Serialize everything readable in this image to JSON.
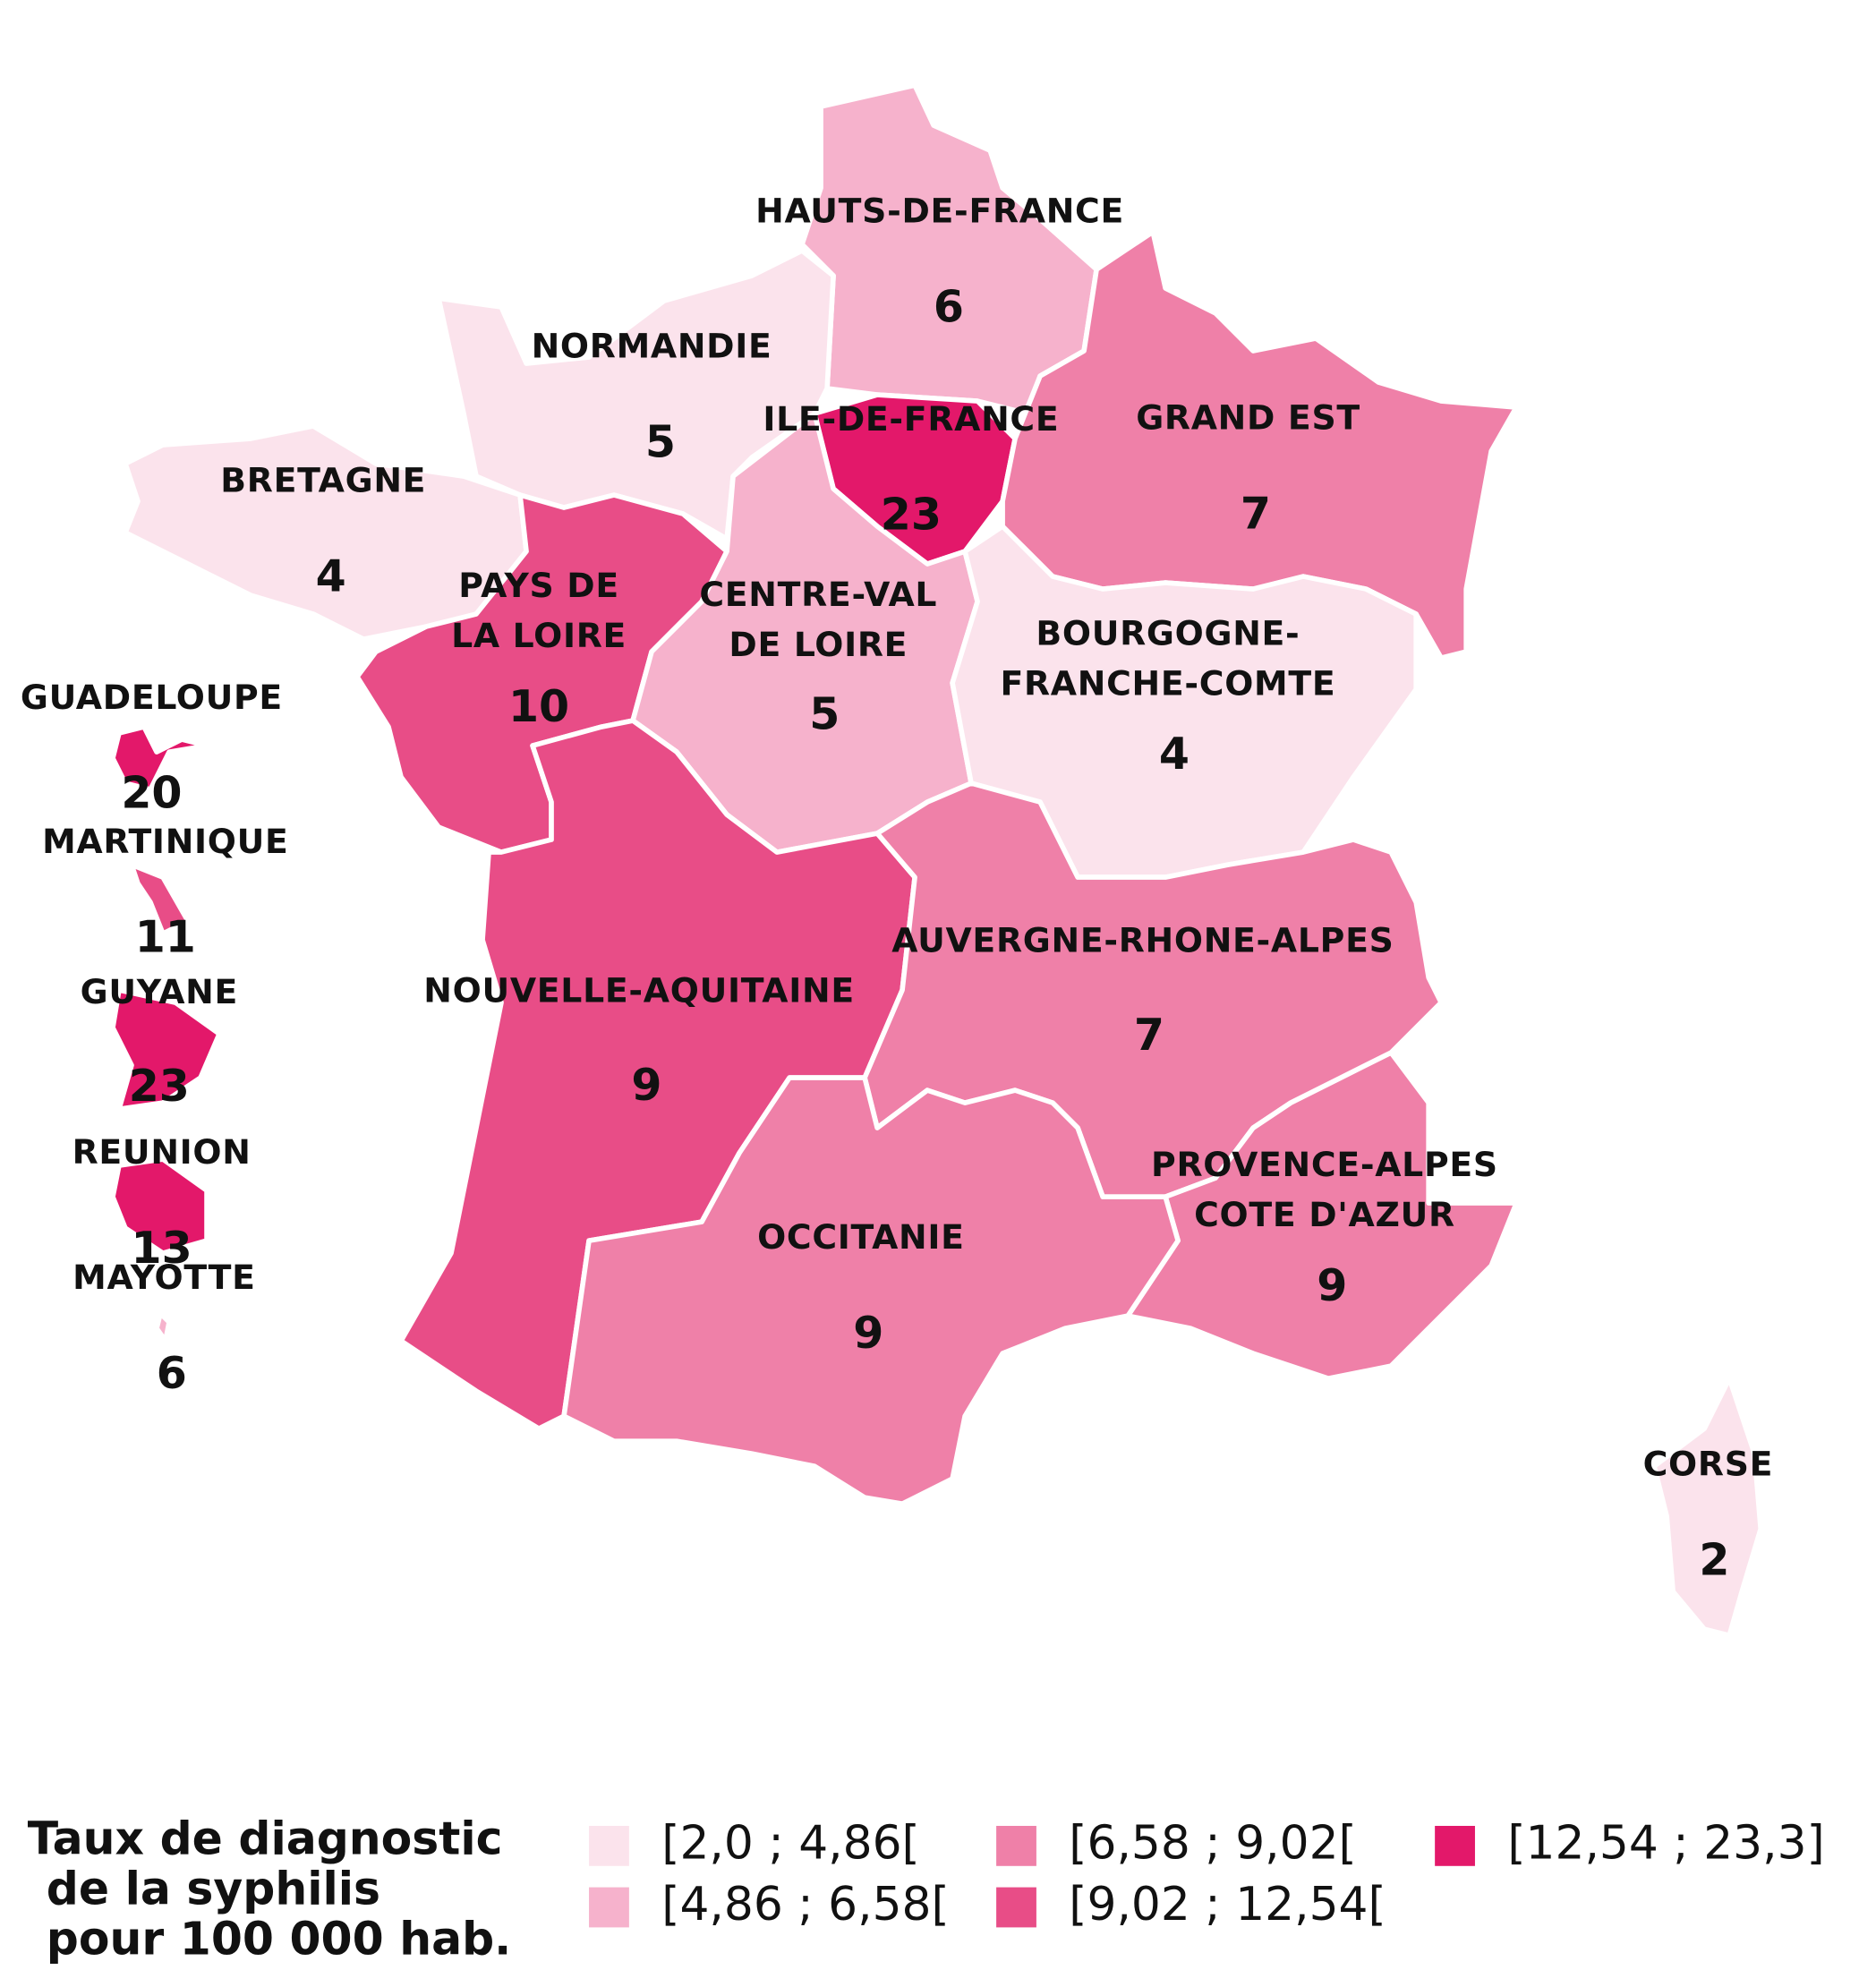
{
  "regions": [
    {
      "name": [
        "HAUTS-DE-FRANCE"
      ],
      "value": 6,
      "color": "#f6b2cc"
    },
    {
      "name": [
        "NORMANDIE"
      ],
      "value": 5,
      "color": "#fbe3ec"
    },
    {
      "name": [
        "ILE-DE-FRANCE"
      ],
      "value": 23,
      "color": "#e3186a"
    },
    {
      "name": [
        "GRAND EST"
      ],
      "value": 7,
      "color": "#ef80a8"
    },
    {
      "name": [
        "BRETAGNE"
      ],
      "value": 4,
      "color": "#fbe3ec"
    },
    {
      "name": [
        "PAYS DE",
        "LA LOIRE"
      ],
      "value": 10,
      "color": "#e84d87"
    },
    {
      "name": [
        "CENTRE-VAL",
        "DE LOIRE"
      ],
      "value": 5,
      "color": "#f6b2cc"
    },
    {
      "name": [
        "BOURGOGNE-",
        "FRANCHE-COMTE"
      ],
      "value": 4,
      "color": "#fbe3ec"
    },
    {
      "name": [
        "NOUVELLE-AQUITAINE"
      ],
      "value": 9,
      "color": "#e84d87"
    },
    {
      "name": [
        "AUVERGNE-RHONE-ALPES"
      ],
      "value": 7,
      "color": "#ef80a8"
    },
    {
      "name": [
        "PROVENCE-ALPES",
        "COTE D'AZUR"
      ],
      "value": 9,
      "color": "#ef80a8"
    },
    {
      "name": [
        "OCCITANIE"
      ],
      "value": 9,
      "color": "#ef80a8"
    },
    {
      "name": [
        "CORSE"
      ],
      "value": 2,
      "color": "#fbe3ec"
    },
    {
      "name": [
        "GUADELOUPE"
      ],
      "value": 20,
      "color": "#e3186a"
    },
    {
      "name": [
        "MARTINIQUE"
      ],
      "value": 11,
      "color": "#e84d87"
    },
    {
      "name": [
        "GUYANE"
      ],
      "value": 23,
      "color": "#e3186a"
    },
    {
      "name": [
        "REUNION"
      ],
      "value": 13,
      "color": "#e3186a"
    },
    {
      "name": [
        "MAYOTTE"
      ],
      "value": 6,
      "color": "#f6b2cc"
    }
  ],
  "legend": {
    "title": [
      "Taux de diagnostic",
      "de la syphilis",
      "pour 100 000 hab."
    ],
    "classes": [
      {
        "label": "[2,0 ; 4,86[",
        "color": "#fbe3ec"
      },
      {
        "label": "[4,86 ; 6,58[",
        "color": "#f6b2cc"
      },
      {
        "label": "[6,58 ; 9,02[",
        "color": "#ef80a8"
      },
      {
        "label": "[9,02 ; 12,54[",
        "color": "#e84d87"
      },
      {
        "label": "[12,54 ; 23,3]",
        "color": "#e3186a"
      }
    ]
  }
}
